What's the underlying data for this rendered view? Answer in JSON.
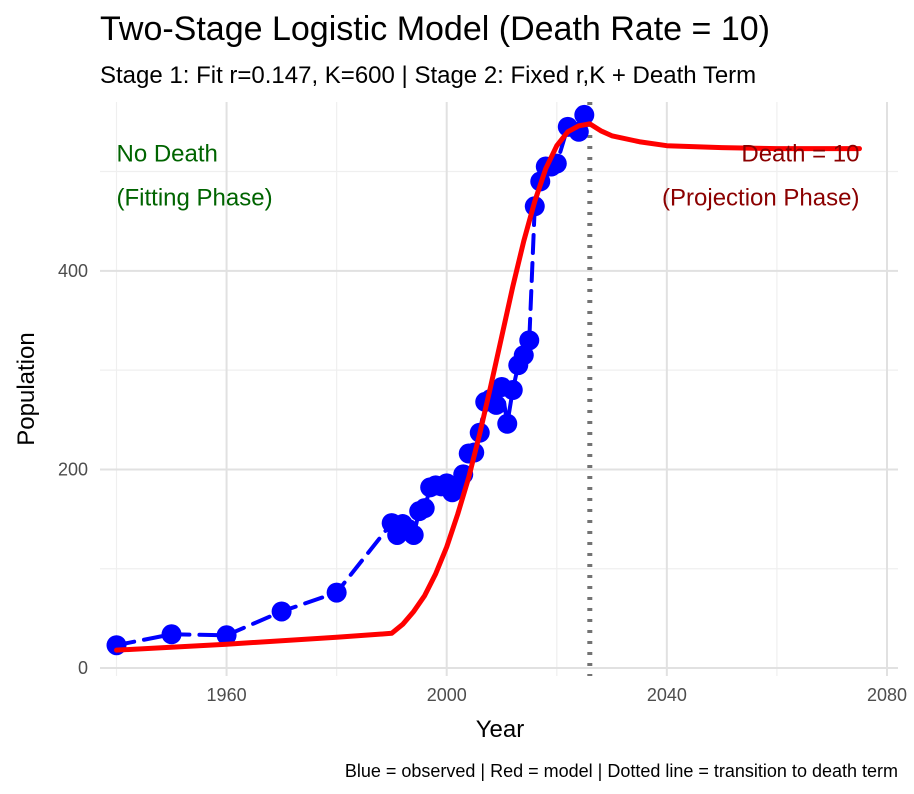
{
  "chart_data": {
    "type": "line",
    "title": "Two-Stage Logistic Model (Death Rate = 10)",
    "subtitle": "Stage 1: Fit r=0.147, K=600 | Stage 2: Fixed r,K + Death Term",
    "xlabel": "Year",
    "ylabel": "Population",
    "caption": "Blue = observed | Red = model | Dotted line = transition to death term",
    "xlim": [
      1937,
      2082
    ],
    "ylim": [
      -8,
      570
    ],
    "x_ticks": [
      1960,
      2000,
      2040,
      2080
    ],
    "x_tick_labels": [
      "1960",
      "2000",
      "2040",
      "2080"
    ],
    "y_ticks": [
      0,
      200,
      400
    ],
    "y_tick_labels": [
      "0",
      "200",
      "400"
    ],
    "grid": true,
    "legend": "none",
    "transition_year": 2026,
    "annotations": [
      {
        "lines": [
          "No Death",
          "(Fitting Phase)"
        ],
        "x": 1940,
        "y": [
          510,
          466
        ],
        "align": "left",
        "color": "#006400"
      },
      {
        "lines": [
          "Death = 10",
          "(Projection Phase)"
        ],
        "x": 2075,
        "y": [
          510,
          466
        ],
        "align": "right",
        "color": "#8B0000"
      }
    ],
    "series": [
      {
        "name": "Blue = observed",
        "style": "dashed",
        "color": "#0000FF",
        "points": [
          [
            1940,
            23
          ],
          [
            1950,
            34
          ],
          [
            1960,
            33
          ],
          [
            1970,
            57
          ],
          [
            1980,
            76
          ],
          [
            1990,
            146
          ],
          [
            1991,
            134
          ],
          [
            1992,
            145
          ],
          [
            1993,
            140
          ],
          [
            1994,
            134
          ],
          [
            1995,
            158
          ],
          [
            1996,
            161
          ],
          [
            1997,
            182
          ],
          [
            1998,
            184
          ],
          [
            1999,
            183
          ],
          [
            2000,
            186
          ],
          [
            2001,
            177
          ],
          [
            2002,
            184
          ],
          [
            2003,
            195
          ],
          [
            2004,
            216
          ],
          [
            2005,
            217
          ],
          [
            2006,
            237
          ],
          [
            2007,
            268
          ],
          [
            2008,
            271
          ],
          [
            2009,
            265
          ],
          [
            2010,
            283
          ],
          [
            2011,
            246
          ],
          [
            2012,
            280
          ],
          [
            2013,
            305
          ],
          [
            2014,
            315
          ],
          [
            2015,
            330
          ],
          [
            2016,
            465
          ],
          [
            2017,
            490
          ],
          [
            2018,
            505
          ],
          [
            2019,
            505
          ],
          [
            2020,
            508
          ],
          [
            2022,
            545
          ],
          [
            2024,
            540
          ],
          [
            2025,
            557
          ]
        ]
      },
      {
        "name": "Red = model",
        "style": "solid",
        "color": "#FF0000",
        "points": [
          [
            1940,
            18
          ],
          [
            1960,
            24
          ],
          [
            1980,
            31
          ],
          [
            1990,
            35
          ],
          [
            1992,
            44
          ],
          [
            1994,
            57
          ],
          [
            1996,
            73
          ],
          [
            1998,
            95
          ],
          [
            2000,
            122
          ],
          [
            2002,
            155
          ],
          [
            2004,
            192
          ],
          [
            2006,
            236
          ],
          [
            2008,
            284
          ],
          [
            2010,
            334
          ],
          [
            2012,
            384
          ],
          [
            2014,
            430
          ],
          [
            2016,
            470
          ],
          [
            2018,
            503
          ],
          [
            2020,
            526
          ],
          [
            2022,
            540
          ],
          [
            2024,
            546
          ],
          [
            2026,
            548
          ],
          [
            2028,
            541
          ],
          [
            2030,
            536
          ],
          [
            2035,
            530
          ],
          [
            2040,
            526
          ],
          [
            2050,
            524
          ],
          [
            2060,
            523
          ],
          [
            2075,
            523
          ]
        ]
      }
    ]
  }
}
